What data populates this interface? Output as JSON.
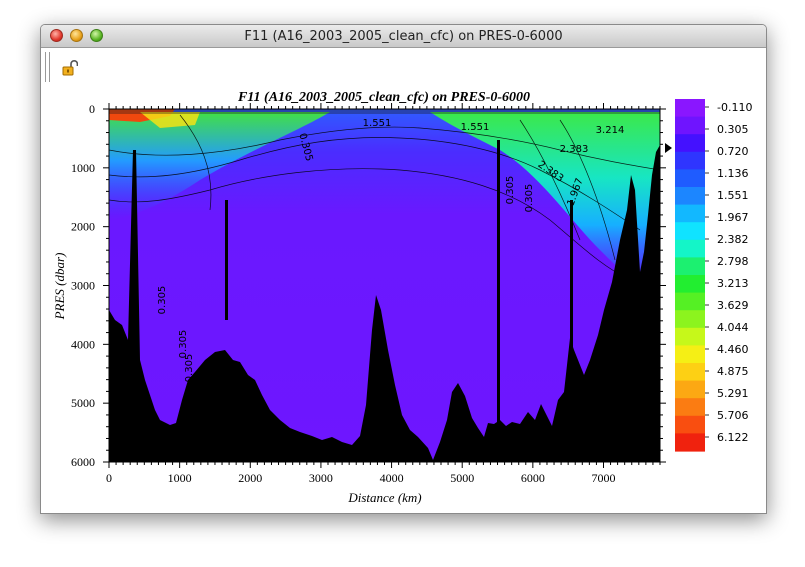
{
  "window": {
    "title": "F11 (A16_2003_2005_clean_cfc) on PRES-0-6000"
  },
  "toolbar": {
    "lock_icon": "lock-open-icon"
  },
  "chart_data": {
    "type": "heatmap",
    "title": "F11 (A16_2003_2005_clean_cfc) on PRES-0-6000",
    "xlabel": "Distance (km)",
    "ylabel": "PRES (dbar)",
    "xlim": [
      0,
      7800
    ],
    "ylim": [
      6000,
      0
    ],
    "x_ticks": [
      0,
      1000,
      2000,
      3000,
      4000,
      5000,
      6000,
      7000
    ],
    "y_ticks": [
      0,
      1000,
      2000,
      3000,
      4000,
      5000,
      6000
    ],
    "colorbar": {
      "labels": [
        "-0.110",
        "0.305",
        "0.720",
        "1.136",
        "1.551",
        "1.967",
        "2.382",
        "2.798",
        "3.213",
        "3.629",
        "4.044",
        "4.460",
        "4.875",
        "5.291",
        "5.706",
        "6.122"
      ],
      "colors": [
        "#8a16ff",
        "#6f14ff",
        "#4411ff",
        "#2f35ff",
        "#1f5cff",
        "#1c86ff",
        "#12b8ff",
        "#10e3ff",
        "#14f5c8",
        "#1cf070",
        "#22ee30",
        "#55f024",
        "#8cf41e",
        "#c6f81a",
        "#f5ef15",
        "#fdd014",
        "#fca813",
        "#fb7c12",
        "#f94e10",
        "#f0220e"
      ]
    },
    "contour_labels": [
      "0.305",
      "0.305",
      "0.305",
      "0.305",
      "0.305",
      "0.305",
      "1.551",
      "2.383",
      "3.214",
      "1.967",
      "2.383",
      "1.551"
    ]
  }
}
